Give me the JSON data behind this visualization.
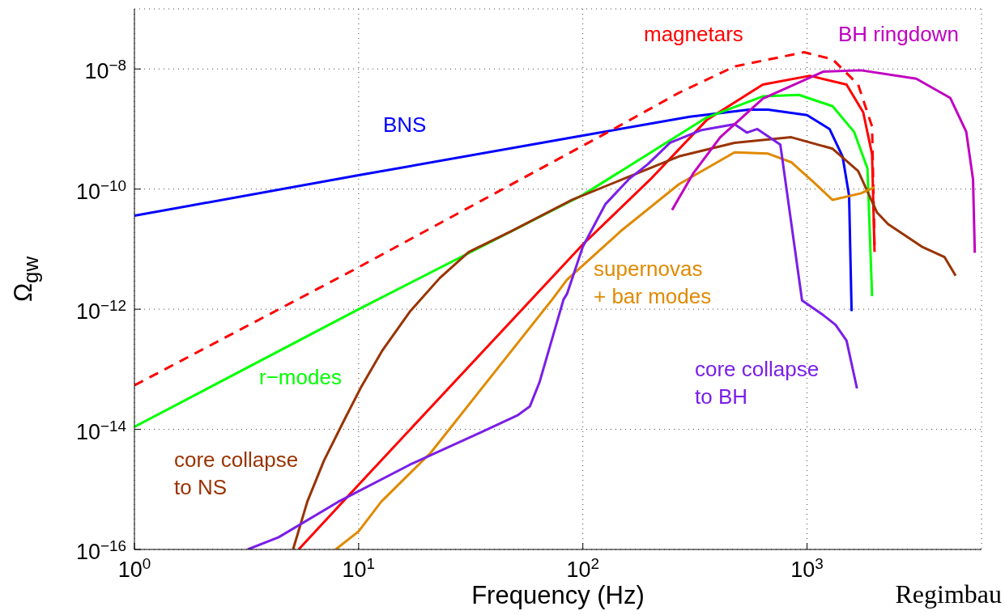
{
  "chart_data": {
    "type": "line",
    "xlabel": "Frequency (Hz)",
    "ylabel": "Ω$_{gw}$",
    "log": "xy",
    "grid": true,
    "marker": "none",
    "xlim": [
      1,
      6000
    ],
    "ylim": [
      1e-16,
      1e-07
    ],
    "xticks": [
      {
        "value": 1,
        "label": "10$^{0}$"
      },
      {
        "value": 10,
        "label": "10$^{1}$"
      },
      {
        "value": 100,
        "label": "10$^{2}$"
      },
      {
        "value": 1000,
        "label": "10$^{3}$"
      }
    ],
    "yticks": [
      {
        "value": 1e-16,
        "label": "10$^{−16}$"
      },
      {
        "value": 1e-14,
        "label": "10$^{−14}$"
      },
      {
        "value": 1e-12,
        "label": "10$^{−12}$"
      },
      {
        "value": 1e-10,
        "label": "10$^{−10}$"
      },
      {
        "value": 1e-08,
        "label": "10$^{−8}$"
      }
    ],
    "annotations": [
      "Regimbau"
    ],
    "series": [
      {
        "name": "BNS",
        "color": "#0000ff",
        "x": [
          1,
          10,
          100,
          300,
          550,
          670,
          1000,
          1260,
          1440,
          1540,
          1580
        ],
        "values": [
          3.6e-11,
          1.7e-10,
          7.8e-10,
          1.6e-09,
          2.1e-09,
          2.1e-09,
          1.7e-09,
          1e-09,
          3.5e-10,
          7.8e-11,
          9.3e-13
        ]
      },
      {
        "color": "#ff0000",
        "line_style": "dashed",
        "x": [
          1,
          10,
          131,
          268,
          475,
          970,
          1300,
          1690,
          1950,
          2000
        ],
        "values": [
          5.4e-14,
          5e-12,
          9.1e-10,
          4e-09,
          1.1e-08,
          1.9e-08,
          1.45e-08,
          5.5e-09,
          1.1e-09,
          1.1e-11
        ]
      },
      {
        "name": "magnetars",
        "color": "#ff0000",
        "x": [
          5.4,
          10,
          100,
          200,
          356,
          635,
          1030,
          1500,
          1780,
          1950,
          2000
        ],
        "values": [
          1e-16,
          1.2e-15,
          1.2e-11,
          1.45e-10,
          1.4e-09,
          5.5e-09,
          7.7e-09,
          5.5e-09,
          1.9e-09,
          3.8e-10,
          9e-12
        ]
      },
      {
        "name": "r−modes",
        "color": "#00ff00",
        "x": [
          1,
          10,
          100,
          356,
          635,
          920,
          1300,
          1620,
          1860,
          1950
        ],
        "values": [
          1.1e-14,
          1e-12,
          8e-11,
          1.55e-09,
          3.5e-09,
          3.7e-09,
          2.4e-09,
          9e-10,
          2.2e-10,
          1.65e-12
        ]
      },
      {
        "name": "core collapse\nto NS",
        "color": "#993300",
        "x": [
          5.1,
          5.9,
          7,
          8.6,
          10.3,
          12.7,
          17,
          23,
          31,
          48,
          90,
          150,
          268,
          475,
          850,
          1300,
          1690,
          2050,
          2300,
          3250,
          4100,
          4600
        ],
        "values": [
          1e-16,
          6.2e-16,
          3e-15,
          1.4e-14,
          5.2e-14,
          2e-13,
          9.3e-13,
          3.3e-12,
          9e-12,
          2e-11,
          6.7e-11,
          1.45e-10,
          3.5e-10,
          5.9e-10,
          7.3e-10,
          4.7e-10,
          2e-10,
          4.1e-11,
          2.6e-11,
          1.1e-11,
          7.4e-12,
          3.6e-12
        ]
      },
      {
        "name": "supernovas\n+ bar modes",
        "color": "#e08a00",
        "x": [
          7.9,
          10,
          12.6,
          21,
          36,
          73,
          85,
          150,
          268,
          475,
          670,
          850,
          1070,
          1300,
          1740,
          2000
        ],
        "values": [
          1e-16,
          2e-16,
          6.2e-16,
          4.1e-15,
          5.2e-14,
          1.45e-12,
          3.1e-12,
          2.1e-11,
          1.2e-10,
          4.1e-10,
          3.9e-10,
          2.8e-10,
          1.3e-10,
          6.6e-11,
          8.5e-11,
          1.07e-10
        ]
      },
      {
        "name": "core collapse\nto BH",
        "color": "#7a1ee8",
        "x": [
          3.2,
          4.4,
          8.1,
          17,
          36,
          51,
          58,
          64,
          82,
          85,
          100,
          126,
          160,
          195,
          245,
          335,
          475,
          540,
          600,
          760,
          950,
          1180,
          1340,
          1500,
          1670
        ],
        "values": [
          1e-16,
          1.6e-16,
          6.2e-16,
          2.6e-15,
          9.3e-15,
          1.7e-14,
          2.4e-14,
          6e-14,
          1.45e-12,
          1.8e-12,
          1.1e-11,
          5.6e-11,
          1.45e-10,
          2.6e-10,
          5.9e-10,
          9.5e-10,
          1.2e-09,
          8.7e-10,
          1e-09,
          5.5e-10,
          1.4e-12,
          8e-13,
          5.5e-13,
          3e-13,
          4.8e-14
        ]
      },
      {
        "name": "BH ringdown",
        "color": "#c000c0",
        "x": [
          250,
          310,
          410,
          635,
          1180,
          1740,
          3070,
          4350,
          5130,
          5500,
          5600
        ],
        "values": [
          4.5e-11,
          1.8e-10,
          7.3e-10,
          3.2e-09,
          9e-09,
          9.5e-09,
          6.9e-09,
          3.3e-09,
          9e-10,
          1.45e-10,
          8.7e-12
        ]
      }
    ]
  }
}
